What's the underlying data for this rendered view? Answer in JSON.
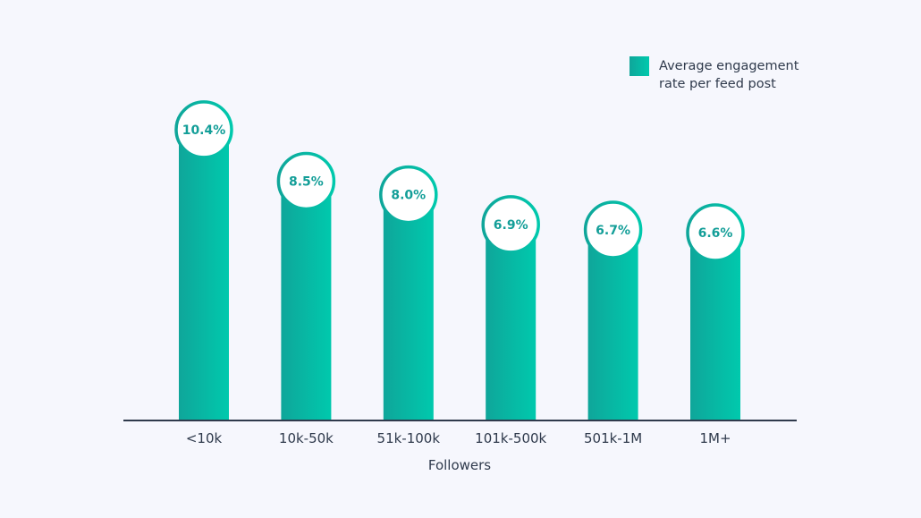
{
  "chart_data": {
    "type": "bar",
    "title": "",
    "xlabel": "Followers",
    "ylabel": "",
    "categories": [
      "<10k",
      "10k-50k",
      "51k-100k",
      "101k-500k",
      "501k-1M",
      "1M+"
    ],
    "series": [
      {
        "name": "Average engagement rate per feed post",
        "values": [
          10.4,
          8.5,
          8.0,
          6.9,
          6.7,
          6.6
        ],
        "labels": [
          "10.4%",
          "8.5%",
          "8.0%",
          "6.9%",
          "6.7%",
          "6.6%"
        ]
      }
    ],
    "legend": {
      "position": "top-right",
      "lines": [
        "Average engagement",
        "rate per feed post"
      ]
    },
    "grid": false,
    "colors": {
      "bar_start": "#0fa69a",
      "bar_end": "#00c9ad",
      "label": "#139e98",
      "axis": "#2f3a4c",
      "background": "#f6f7fd"
    }
  }
}
